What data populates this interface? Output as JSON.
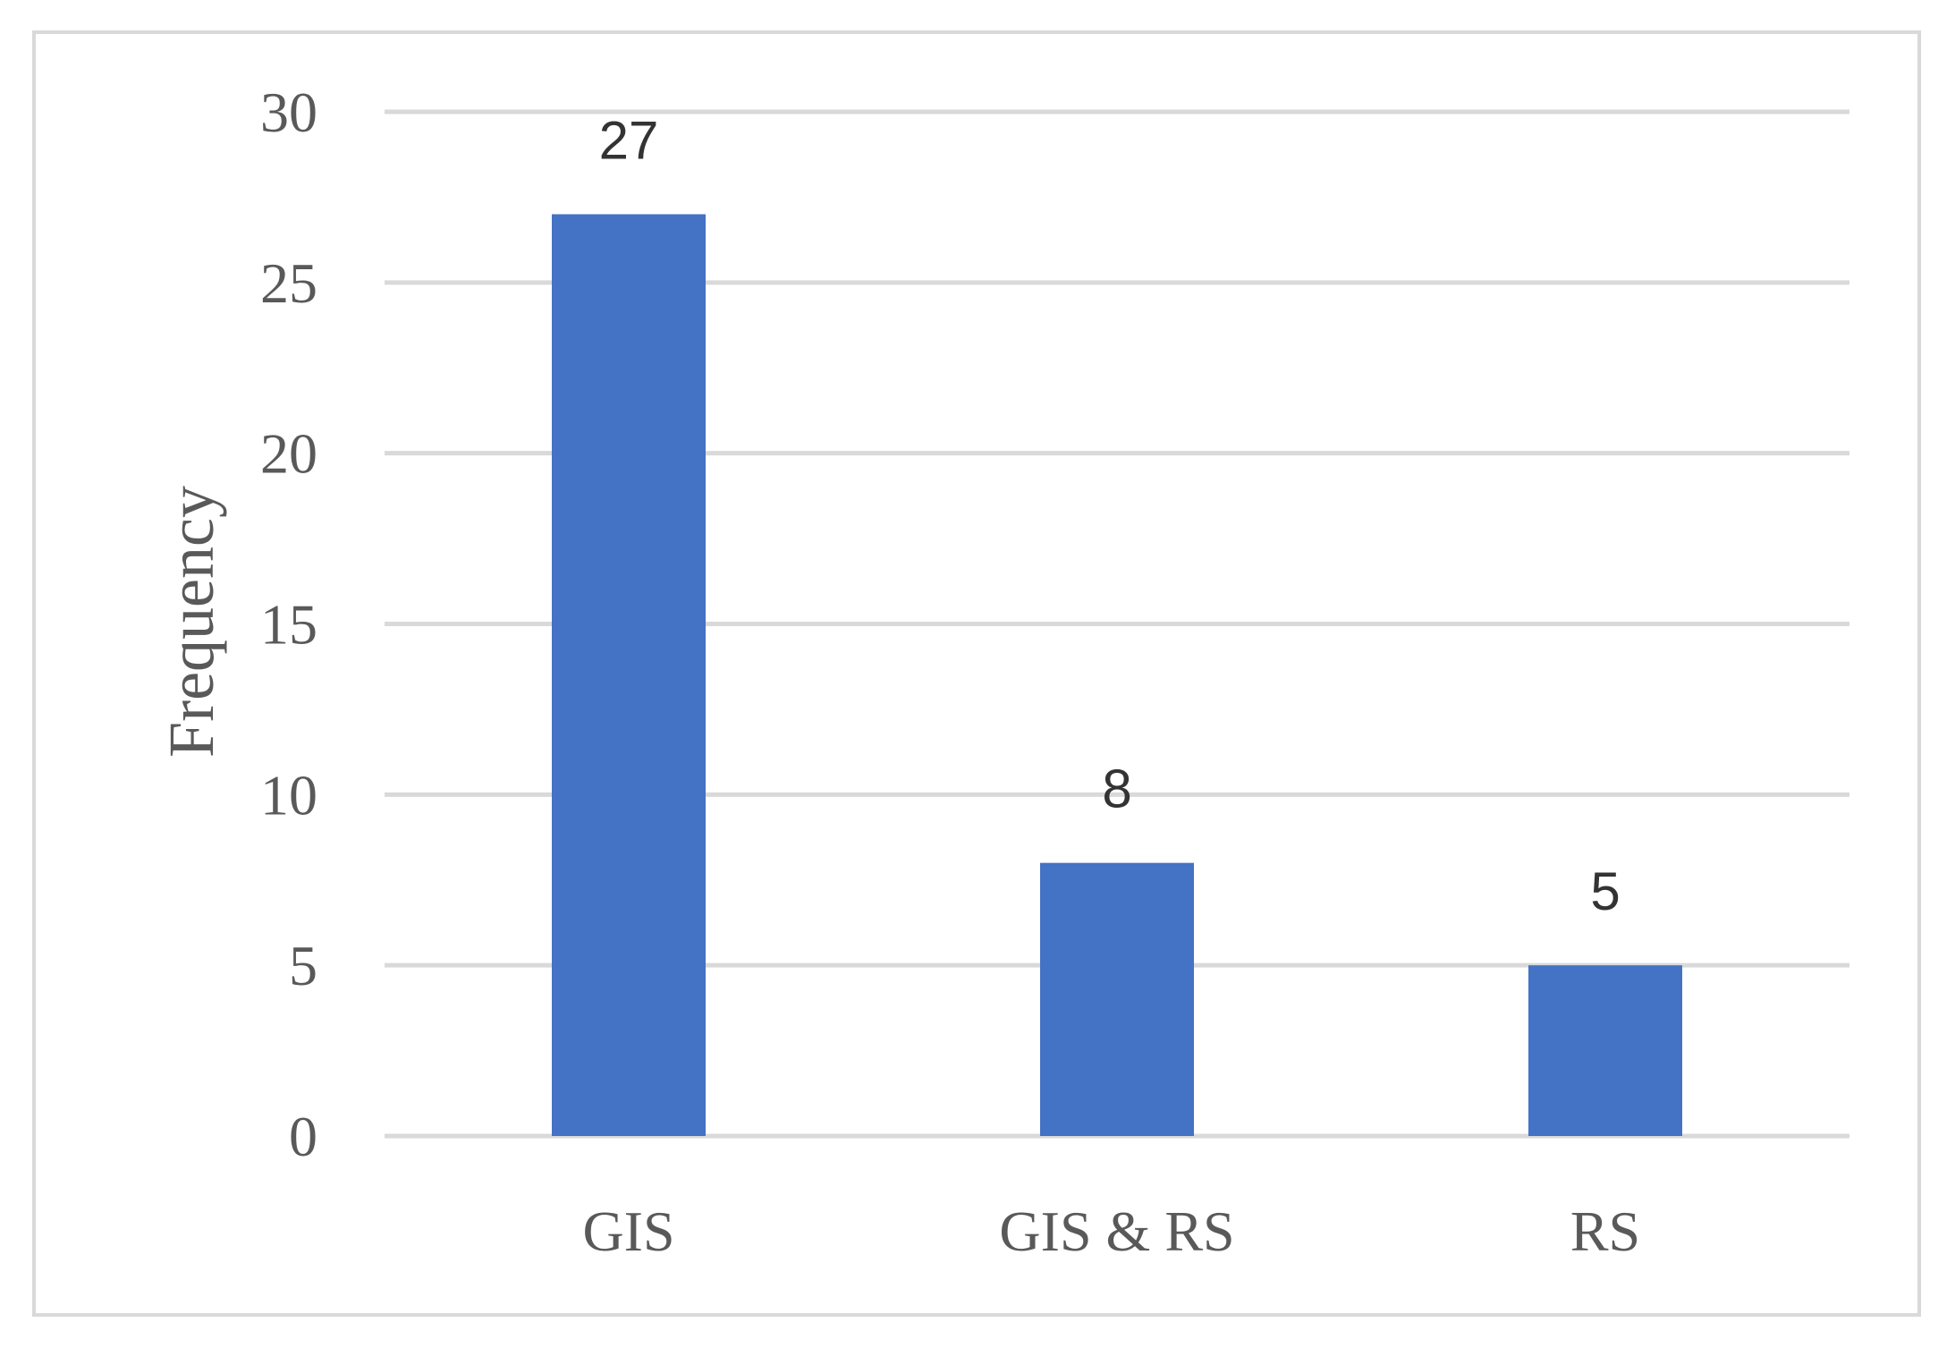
{
  "chart_data": {
    "type": "bar",
    "categories": [
      "GIS",
      "GIS & RS",
      "RS"
    ],
    "values": [
      27,
      8,
      5
    ],
    "data_labels": [
      "27",
      "8",
      "5"
    ],
    "title": "",
    "xlabel": "",
    "ylabel": "Frequency",
    "ylim": [
      0,
      30
    ],
    "yticks": [
      0,
      5,
      10,
      15,
      20,
      25,
      30
    ],
    "grid": true,
    "legend": "none",
    "bar_color": "#4472C4",
    "grid_color": "#d9d9d9",
    "text_color": "#595959"
  }
}
